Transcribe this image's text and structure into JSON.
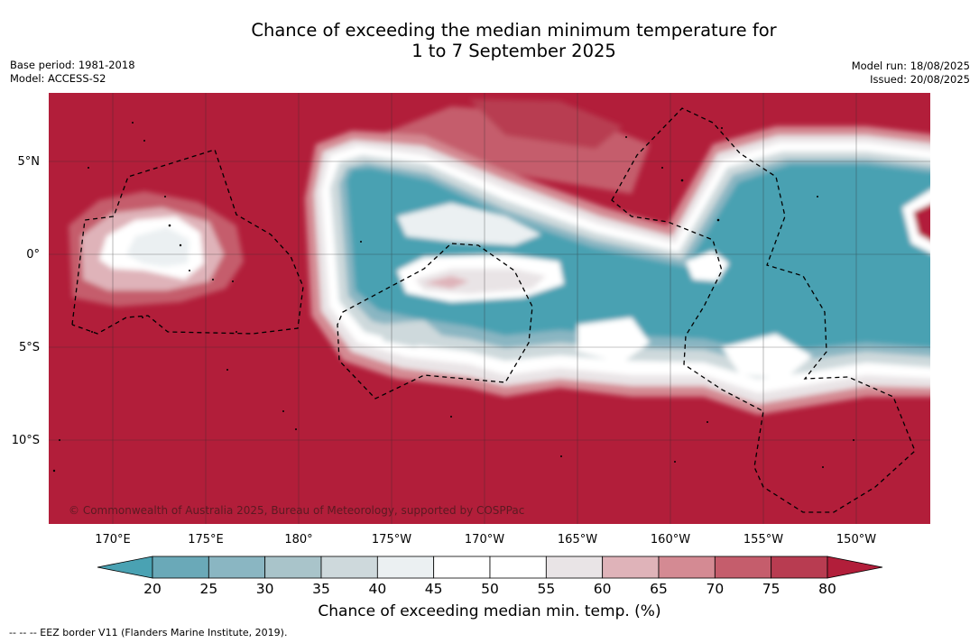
{
  "header": {
    "title_line1": "Chance of exceeding the median minimum temperature for",
    "title_line2": "1 to 7 September 2025"
  },
  "meta_left": {
    "base_period": "Base period: 1981-2018",
    "model": "Model: ACCESS-S2"
  },
  "meta_right": {
    "model_run": "Model run: 18/08/2025",
    "issued": "Issued: 20/08/2025"
  },
  "map": {
    "lat_labels": [
      "5°N",
      "0°",
      "5°S",
      "10°S"
    ],
    "lon_labels": [
      "170°E",
      "175°E",
      "180°",
      "175°W",
      "170°W",
      "165°W",
      "160°W",
      "155°W",
      "150°W"
    ],
    "credit": "© Commonwealth of Australia 2025, Bureau of Meteorology, supported by COSPPac",
    "high_color": "#b21e3a",
    "low_color": "#48a1b2"
  },
  "colorbar": {
    "ticks": [
      "20",
      "25",
      "30",
      "35",
      "40",
      "45",
      "50",
      "55",
      "60",
      "65",
      "70",
      "75",
      "80"
    ],
    "colors": [
      "#4aa2b3",
      "#6aa9b8",
      "#8ab6c2",
      "#a9c4ca",
      "#ced9dc",
      "#ebf0f2",
      "#ffffff",
      "#ffffff",
      "#e9e4e6",
      "#dfb3b9",
      "#d48a93",
      "#c55d6c",
      "#b83c51",
      "#b21e3a"
    ],
    "title": "Chance of exceeding median min. temp. (%)"
  },
  "legend": {
    "eez_note": "--  --  -- EEZ border V11 (Flanders Marine Institute, 2019)."
  }
}
